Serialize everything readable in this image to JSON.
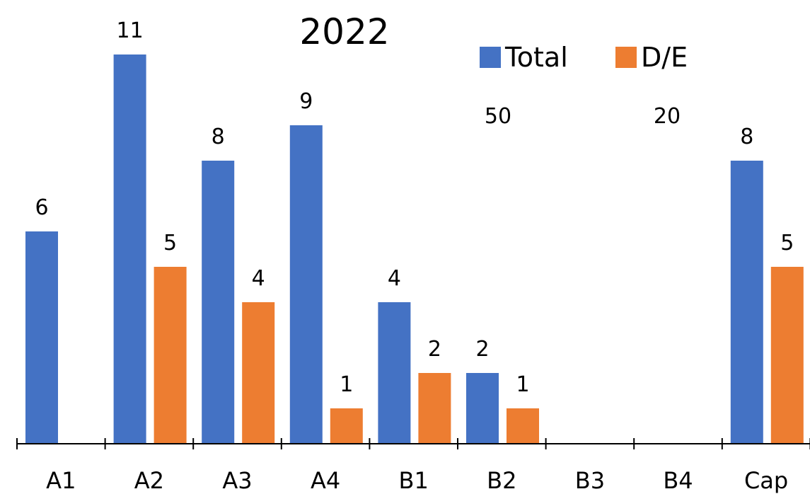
{
  "chart_data": {
    "type": "bar",
    "title": "2022",
    "categories": [
      "A1",
      "A2",
      "A3",
      "A4",
      "B1",
      "B2",
      "B3",
      "B4",
      "Cap"
    ],
    "series": [
      {
        "name": "Total",
        "color": "#4472C4",
        "values": [
          6,
          11,
          8,
          9,
          4,
          2,
          null,
          null,
          8
        ]
      },
      {
        "name": "D/E",
        "color": "#ED7D31",
        "values": [
          null,
          5,
          4,
          1,
          2,
          1,
          null,
          null,
          5
        ]
      }
    ],
    "annotations": [
      "50",
      "20"
    ],
    "legend_position": "top-right",
    "ylim": [
      0,
      11
    ],
    "grid": false,
    "xlabel": "",
    "ylabel": ""
  }
}
